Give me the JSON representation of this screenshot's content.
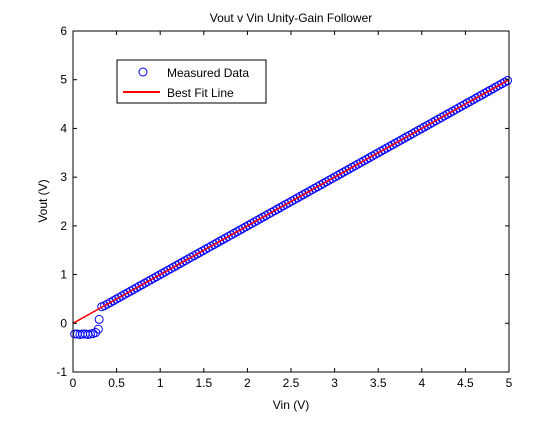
{
  "chart_data": {
    "type": "scatter",
    "title": "Vout v Vin Unity-Gain Follower",
    "xlabel": "Vin (V)",
    "ylabel": "Vout (V)",
    "xlim": [
      0,
      5
    ],
    "ylim": [
      -1,
      6
    ],
    "xticks": [
      "0",
      "0.5",
      "1",
      "1.5",
      "2",
      "2.5",
      "3",
      "3.5",
      "4",
      "4.5",
      "5"
    ],
    "yticks": [
      "-1",
      "0",
      "1",
      "2",
      "3",
      "4",
      "5",
      "6"
    ],
    "grid": false,
    "legend_position": "top-left",
    "series": [
      {
        "name": "Measured Data",
        "kind": "markers",
        "marker": "circle",
        "color": "#0000ff",
        "x": [
          0.02,
          0.05,
          0.08,
          0.11,
          0.14,
          0.17,
          0.2,
          0.23,
          0.26,
          0.29,
          0.3,
          0.33
        ],
        "y": [
          -0.22,
          -0.22,
          -0.23,
          -0.22,
          -0.22,
          -0.23,
          -0.22,
          -0.21,
          -0.19,
          -0.12,
          0.08,
          0.34
        ],
        "linear_segment": {
          "x_start": 0.33,
          "x_end": 5.0,
          "step": 0.033,
          "slope": 1.0,
          "intercept": 0.0
        }
      },
      {
        "name": "Best Fit Line",
        "kind": "line",
        "color": "#ff0000",
        "x": [
          0,
          5
        ],
        "y": [
          0,
          5
        ]
      }
    ]
  }
}
